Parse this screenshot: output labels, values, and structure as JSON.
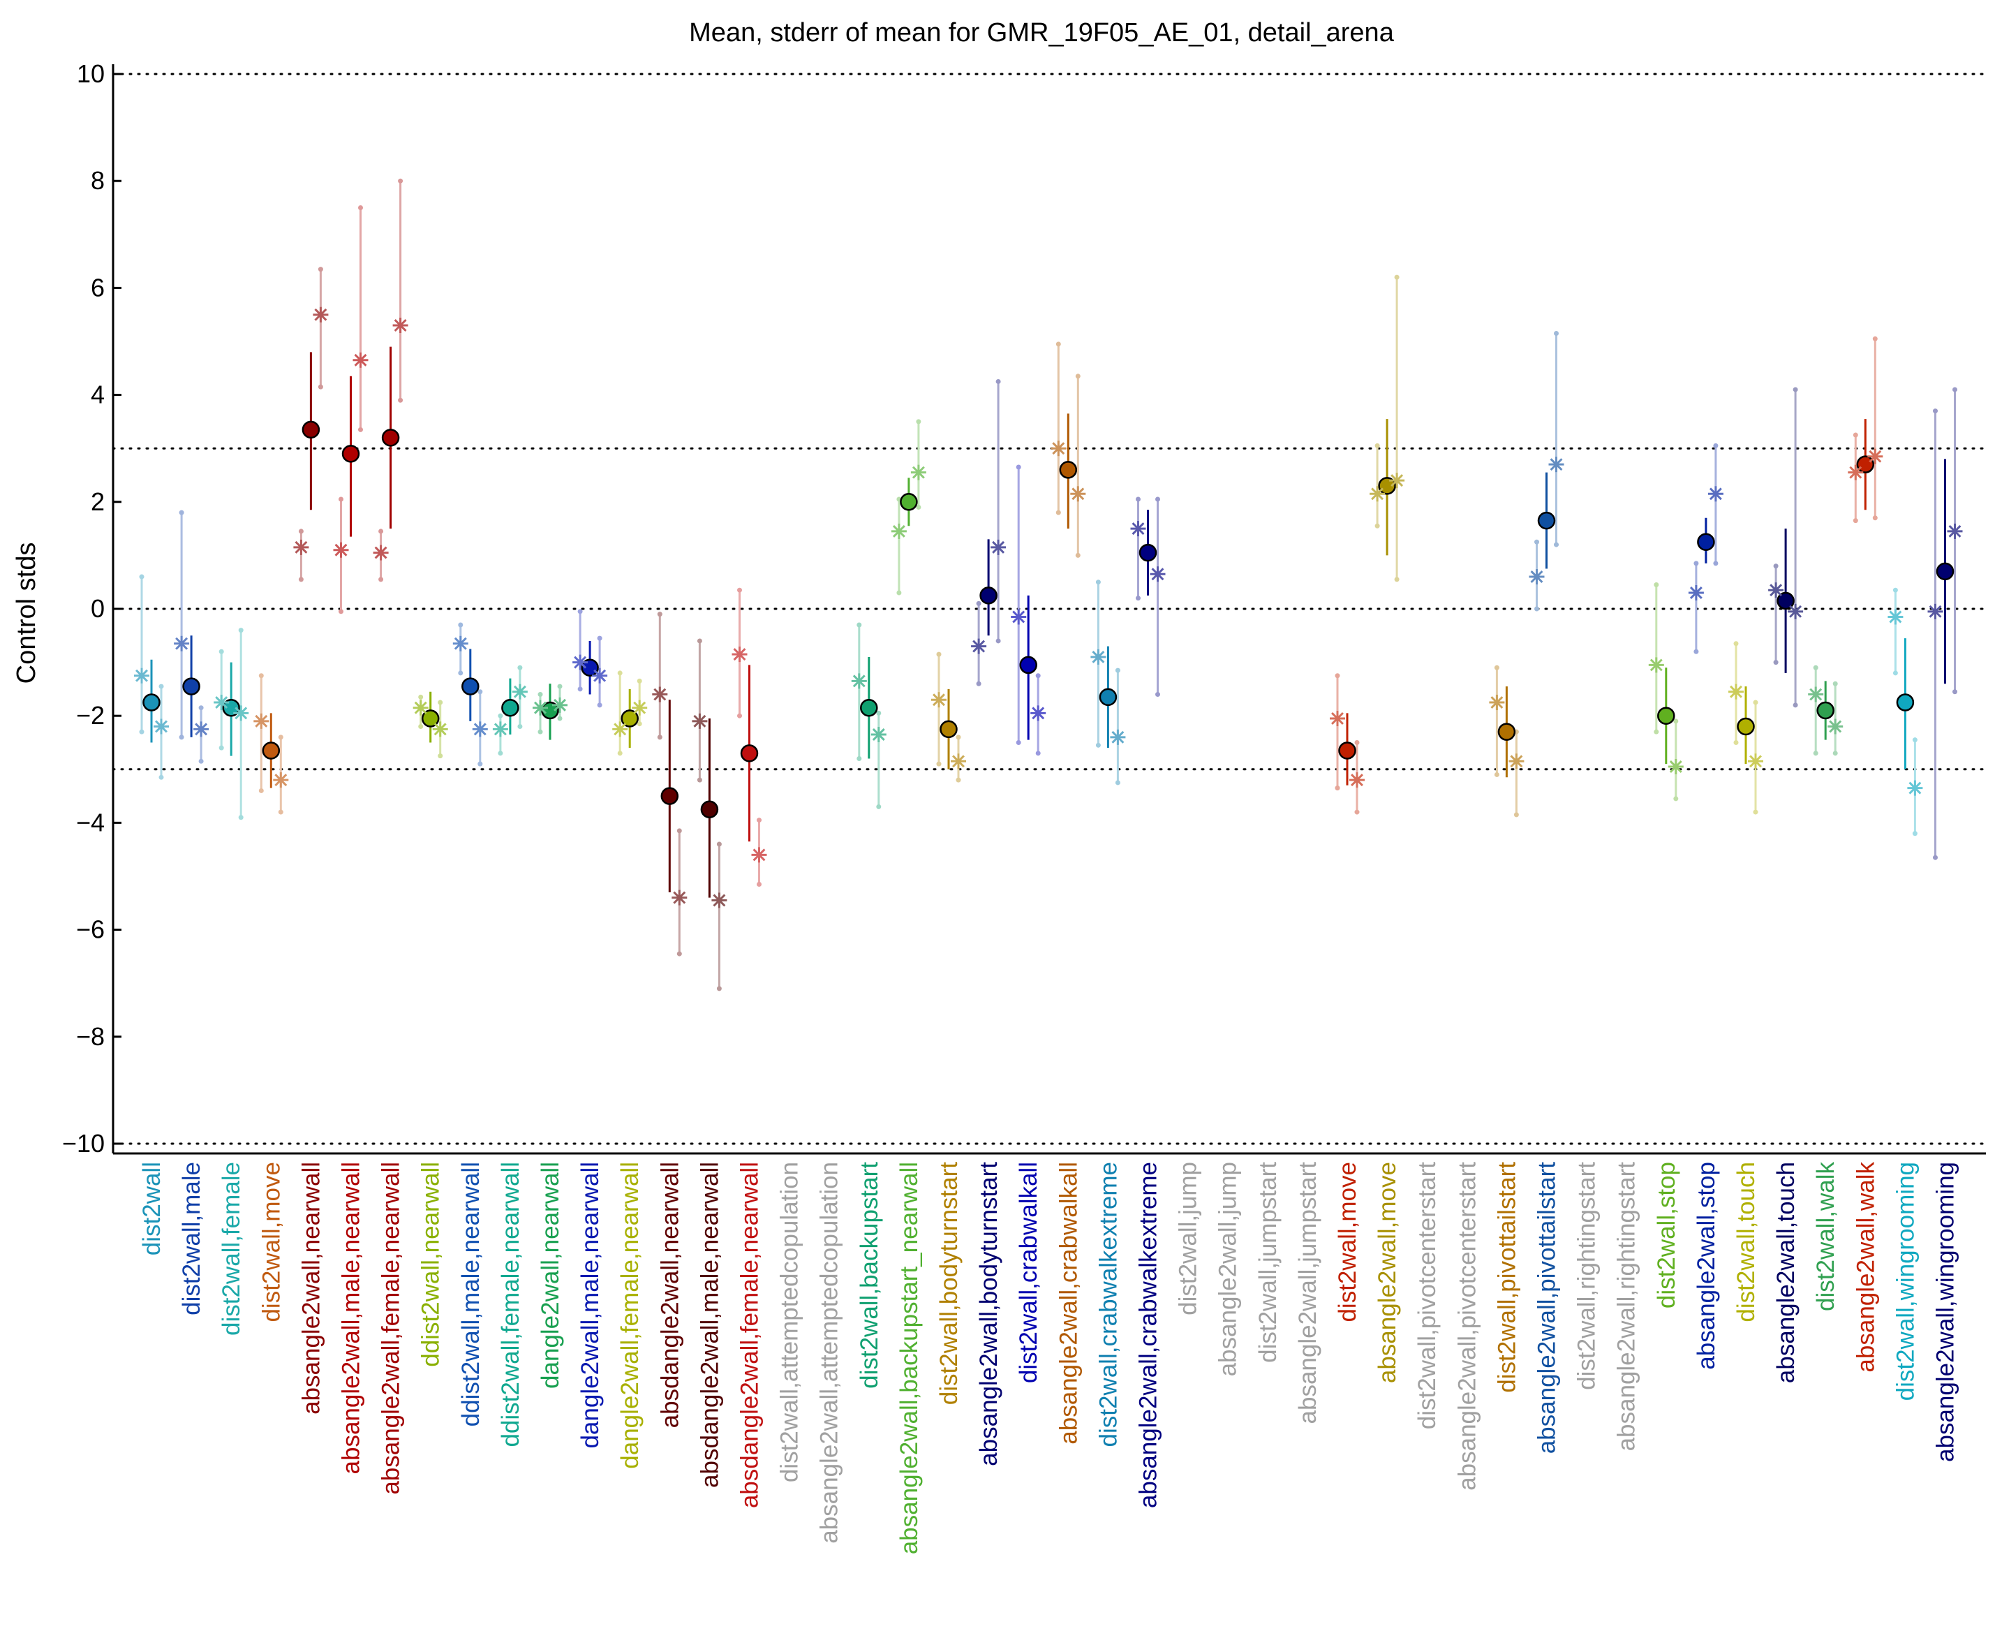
{
  "chart_data": {
    "type": "scatter",
    "title": "Mean, stderr of mean for GMR_19F05_AE_01, detail_arena",
    "ylabel": "Control stds",
    "xlabel": "",
    "ylim": [
      -10.2,
      10.2
    ],
    "yticks": [
      10,
      8,
      6,
      4,
      2,
      0,
      -2,
      -4,
      -6,
      -8,
      -10
    ],
    "ytick_labels": [
      "10",
      "8",
      "6",
      "4",
      "2",
      "0",
      "−2",
      "−4",
      "−6",
      "−8",
      "−10"
    ],
    "reference_lines": [
      10,
      3,
      0,
      -3,
      -10
    ],
    "categories": [
      "dist2wall",
      "dist2wall,male",
      "dist2wall,female",
      "dist2wall,move",
      "absangle2wall,nearwall",
      "absangle2wall,male,nearwall",
      "absangle2wall,female,nearwall",
      "ddist2wall,nearwall",
      "ddist2wall,male,nearwall",
      "ddist2wall,female,nearwall",
      "dangle2wall,nearwall",
      "dangle2wall,male,nearwall",
      "dangle2wall,female,nearwall",
      "absdangle2wall,nearwall",
      "absdangle2wall,male,nearwall",
      "absdangle2wall,female,nearwall",
      "dist2wall,attemptedcopulation",
      "absangle2wall,attemptedcopulation",
      "dist2wall,backupstart",
      "absangle2wall,backupstart_nearwall",
      "dist2wall,bodyturnstart",
      "absangle2wall,bodyturnstart",
      "dist2wall,crabwalkall",
      "absangle2wall,crabwalkall",
      "dist2wall,crabwalkextreme",
      "absangle2wall,crabwalkextreme",
      "dist2wall,jump",
      "absangle2wall,jump",
      "dist2wall,jumpstart",
      "absangle2wall,jumpstart",
      "dist2wall,move",
      "absangle2wall,move",
      "dist2wall,pivotcenterstart",
      "absangle2wall,pivotcenterstart",
      "dist2wall,pivottailstart",
      "absangle2wall,pivottailstart",
      "dist2wall,rightingstart",
      "absangle2wall,rightingstart",
      "dist2wall,stop",
      "absangle2wall,stop",
      "dist2wall,touch",
      "absangle2wall,touch",
      "dist2wall,walk",
      "absangle2wall,walk",
      "dist2wall,wingrooming",
      "absangle2wall,wingrooming"
    ],
    "category_colors": [
      "#1b93b8",
      "#1040a8",
      "#1aa8a8",
      "#c05a10",
      "#8a0000",
      "#b00000",
      "#a00000",
      "#8ab000",
      "#1050b0",
      "#10a890",
      "#18a050",
      "#0818b0",
      "#a8b000",
      "#600000",
      "#500000",
      "#c01010",
      "#a0a0a0",
      "#a0a0a0",
      "#10a070",
      "#50b030",
      "#b08000",
      "#000070",
      "#0000b0",
      "#b05800",
      "#1080b0",
      "#000080",
      "#a0a0a0",
      "#a0a0a0",
      "#a0a0a0",
      "#a0a0a0",
      "#c02000",
      "#a89000",
      "#a0a0a0",
      "#a0a0a0",
      "#b07000",
      "#1050a0",
      "#a0a0a0",
      "#a0a0a0",
      "#60b020",
      "#0020a0",
      "#b0b000",
      "#000060",
      "#30a050",
      "#c02000",
      "#10a8c0",
      "#000070"
    ],
    "label_color_split": [
      [
        0,
        9
      ],
      [
        0,
        4
      ],
      [
        0,
        4
      ],
      [
        0,
        4
      ],
      [
        0,
        13
      ],
      [
        0,
        13
      ],
      [
        0,
        13
      ],
      [
        0,
        14
      ],
      [
        0,
        14
      ],
      [
        0,
        14
      ],
      [
        0,
        13
      ],
      [
        0,
        13
      ],
      [
        0,
        13
      ],
      [
        0,
        16
      ],
      [
        0,
        16
      ],
      [
        0,
        16
      ],
      [
        0,
        0
      ],
      [
        0,
        0
      ],
      [
        0,
        9
      ],
      [
        0,
        13
      ],
      [
        0,
        9
      ],
      [
        0,
        13
      ],
      [
        0,
        9
      ],
      [
        0,
        13
      ],
      [
        0,
        9
      ],
      [
        0,
        13
      ],
      [
        0,
        0
      ],
      [
        0,
        0
      ],
      [
        0,
        0
      ],
      [
        0,
        0
      ],
      [
        0,
        9
      ],
      [
        0,
        13
      ],
      [
        0,
        0
      ],
      [
        0,
        0
      ],
      [
        0,
        9
      ],
      [
        0,
        13
      ],
      [
        0,
        0
      ],
      [
        0,
        0
      ],
      [
        0,
        9
      ],
      [
        0,
        13
      ],
      [
        0,
        9
      ],
      [
        0,
        13
      ],
      [
        0,
        9
      ],
      [
        0,
        13
      ],
      [
        0,
        9
      ],
      [
        0,
        13
      ]
    ],
    "series": [
      {
        "marker": "circle",
        "values": [
          -1.75,
          -1.45,
          -1.85,
          -2.65,
          3.35,
          2.9,
          3.2,
          -2.05,
          -1.45,
          -1.85,
          -1.9,
          -1.1,
          -2.05,
          -3.5,
          -3.75,
          -2.7,
          null,
          null,
          -1.85,
          2.0,
          -2.25,
          0.25,
          -1.05,
          2.6,
          -1.65,
          1.05,
          null,
          null,
          null,
          null,
          -2.65,
          2.3,
          null,
          null,
          -2.3,
          1.65,
          null,
          null,
          -2.0,
          1.25,
          -2.2,
          0.15,
          -1.9,
          2.7,
          -1.75,
          0.7
        ],
        "error_low": [
          -2.5,
          -2.4,
          -2.75,
          -3.35,
          1.85,
          1.35,
          1.5,
          -2.5,
          -2.1,
          -2.35,
          -2.45,
          -1.6,
          -2.6,
          -5.3,
          -5.4,
          -4.35,
          null,
          null,
          -2.8,
          1.55,
          -3.0,
          -0.5,
          -2.45,
          1.5,
          -2.6,
          0.25,
          null,
          null,
          null,
          null,
          -3.3,
          1.0,
          null,
          null,
          -3.15,
          0.75,
          null,
          null,
          -2.9,
          0.85,
          -2.9,
          -1.2,
          -2.45,
          1.85,
          -3.0,
          -1.4
        ],
        "error_high": [
          -0.95,
          -0.5,
          -1.0,
          -1.95,
          4.8,
          4.35,
          4.9,
          -1.55,
          -0.75,
          -1.3,
          -1.4,
          -0.6,
          -1.5,
          -1.7,
          -2.05,
          -1.05,
          null,
          null,
          -0.9,
          2.45,
          -1.5,
          1.3,
          0.25,
          3.65,
          -0.7,
          1.85,
          null,
          null,
          null,
          null,
          -1.95,
          3.55,
          null,
          null,
          -1.45,
          2.55,
          null,
          null,
          -1.1,
          1.7,
          -1.45,
          1.5,
          -1.35,
          3.55,
          -0.55,
          2.8
        ]
      },
      {
        "marker": "star-left",
        "values": [
          -1.25,
          -0.65,
          -1.75,
          -2.1,
          1.15,
          1.1,
          1.05,
          -1.85,
          -0.65,
          -2.25,
          -1.85,
          -1.0,
          -2.25,
          -1.6,
          -2.1,
          -0.85,
          null,
          null,
          -1.35,
          1.45,
          -1.7,
          -0.7,
          -0.15,
          3.0,
          -0.9,
          1.5,
          null,
          null,
          null,
          null,
          -2.05,
          2.15,
          null,
          null,
          -1.75,
          0.6,
          null,
          null,
          -1.05,
          0.3,
          -1.55,
          0.35,
          -1.6,
          2.55,
          -0.15,
          -0.05
        ],
        "error_low": [
          -2.3,
          -2.4,
          -2.6,
          -3.4,
          0.55,
          -0.05,
          0.55,
          -2.2,
          -1.2,
          -2.7,
          -2.3,
          -1.5,
          -2.7,
          -2.4,
          -3.2,
          -2.0,
          null,
          null,
          -2.8,
          0.3,
          -2.9,
          -1.4,
          -2.5,
          1.8,
          -2.55,
          0.2,
          null,
          null,
          null,
          null,
          -3.35,
          1.55,
          null,
          null,
          -3.1,
          0.0,
          null,
          null,
          -2.3,
          -0.8,
          -2.5,
          -1.0,
          -2.7,
          1.65,
          -1.2,
          -4.65
        ],
        "error_high": [
          0.6,
          1.8,
          -0.8,
          -1.25,
          1.45,
          2.05,
          1.45,
          -1.65,
          -0.3,
          -2.0,
          -1.6,
          -0.05,
          -1.2,
          -0.1,
          -0.6,
          0.35,
          null,
          null,
          -0.3,
          2.05,
          -0.85,
          0.1,
          2.65,
          4.95,
          0.5,
          2.05,
          null,
          null,
          null,
          null,
          -1.25,
          3.05,
          null,
          null,
          -1.1,
          1.25,
          null,
          null,
          0.45,
          0.85,
          -0.65,
          0.8,
          -1.1,
          3.25,
          0.35,
          3.7
        ]
      },
      {
        "marker": "star-right",
        "values": [
          -2.2,
          -2.25,
          -1.95,
          -3.2,
          5.5,
          4.65,
          5.3,
          -2.25,
          -2.25,
          -1.55,
          -1.8,
          -1.25,
          -1.85,
          -5.4,
          -5.45,
          -4.6,
          null,
          null,
          -2.35,
          2.55,
          -2.85,
          1.15,
          -1.95,
          2.15,
          -2.4,
          0.65,
          null,
          null,
          null,
          null,
          -3.2,
          2.4,
          null,
          null,
          -2.85,
          2.7,
          null,
          null,
          -2.95,
          2.15,
          -2.85,
          -0.05,
          -2.2,
          2.85,
          -3.35,
          1.45
        ],
        "error_low": [
          -3.15,
          -2.85,
          -3.9,
          -3.8,
          4.15,
          3.35,
          3.9,
          -2.75,
          -2.9,
          -2.2,
          -2.05,
          -1.8,
          -2.15,
          -6.45,
          -7.1,
          -5.15,
          null,
          null,
          -3.7,
          1.9,
          -3.2,
          -0.6,
          -2.7,
          1.0,
          -3.25,
          -1.6,
          null,
          null,
          null,
          null,
          -3.8,
          0.55,
          null,
          null,
          -3.85,
          1.2,
          null,
          null,
          -3.55,
          0.85,
          -3.8,
          -1.8,
          -2.7,
          1.7,
          -4.2,
          -1.55
        ],
        "error_high": [
          -1.45,
          -1.85,
          -0.4,
          -2.4,
          6.35,
          7.5,
          8.0,
          -1.75,
          -1.55,
          -1.1,
          -1.45,
          -0.55,
          -1.35,
          -4.15,
          -4.4,
          -3.95,
          null,
          null,
          -1.95,
          3.5,
          -2.4,
          4.25,
          -1.25,
          4.35,
          -1.15,
          2.05,
          null,
          null,
          null,
          null,
          -2.5,
          6.2,
          null,
          null,
          -2.3,
          5.15,
          null,
          null,
          -2.1,
          3.05,
          -1.75,
          4.1,
          -1.4,
          5.05,
          -2.45,
          4.1
        ]
      }
    ],
    "grid": false,
    "legend": "none"
  }
}
